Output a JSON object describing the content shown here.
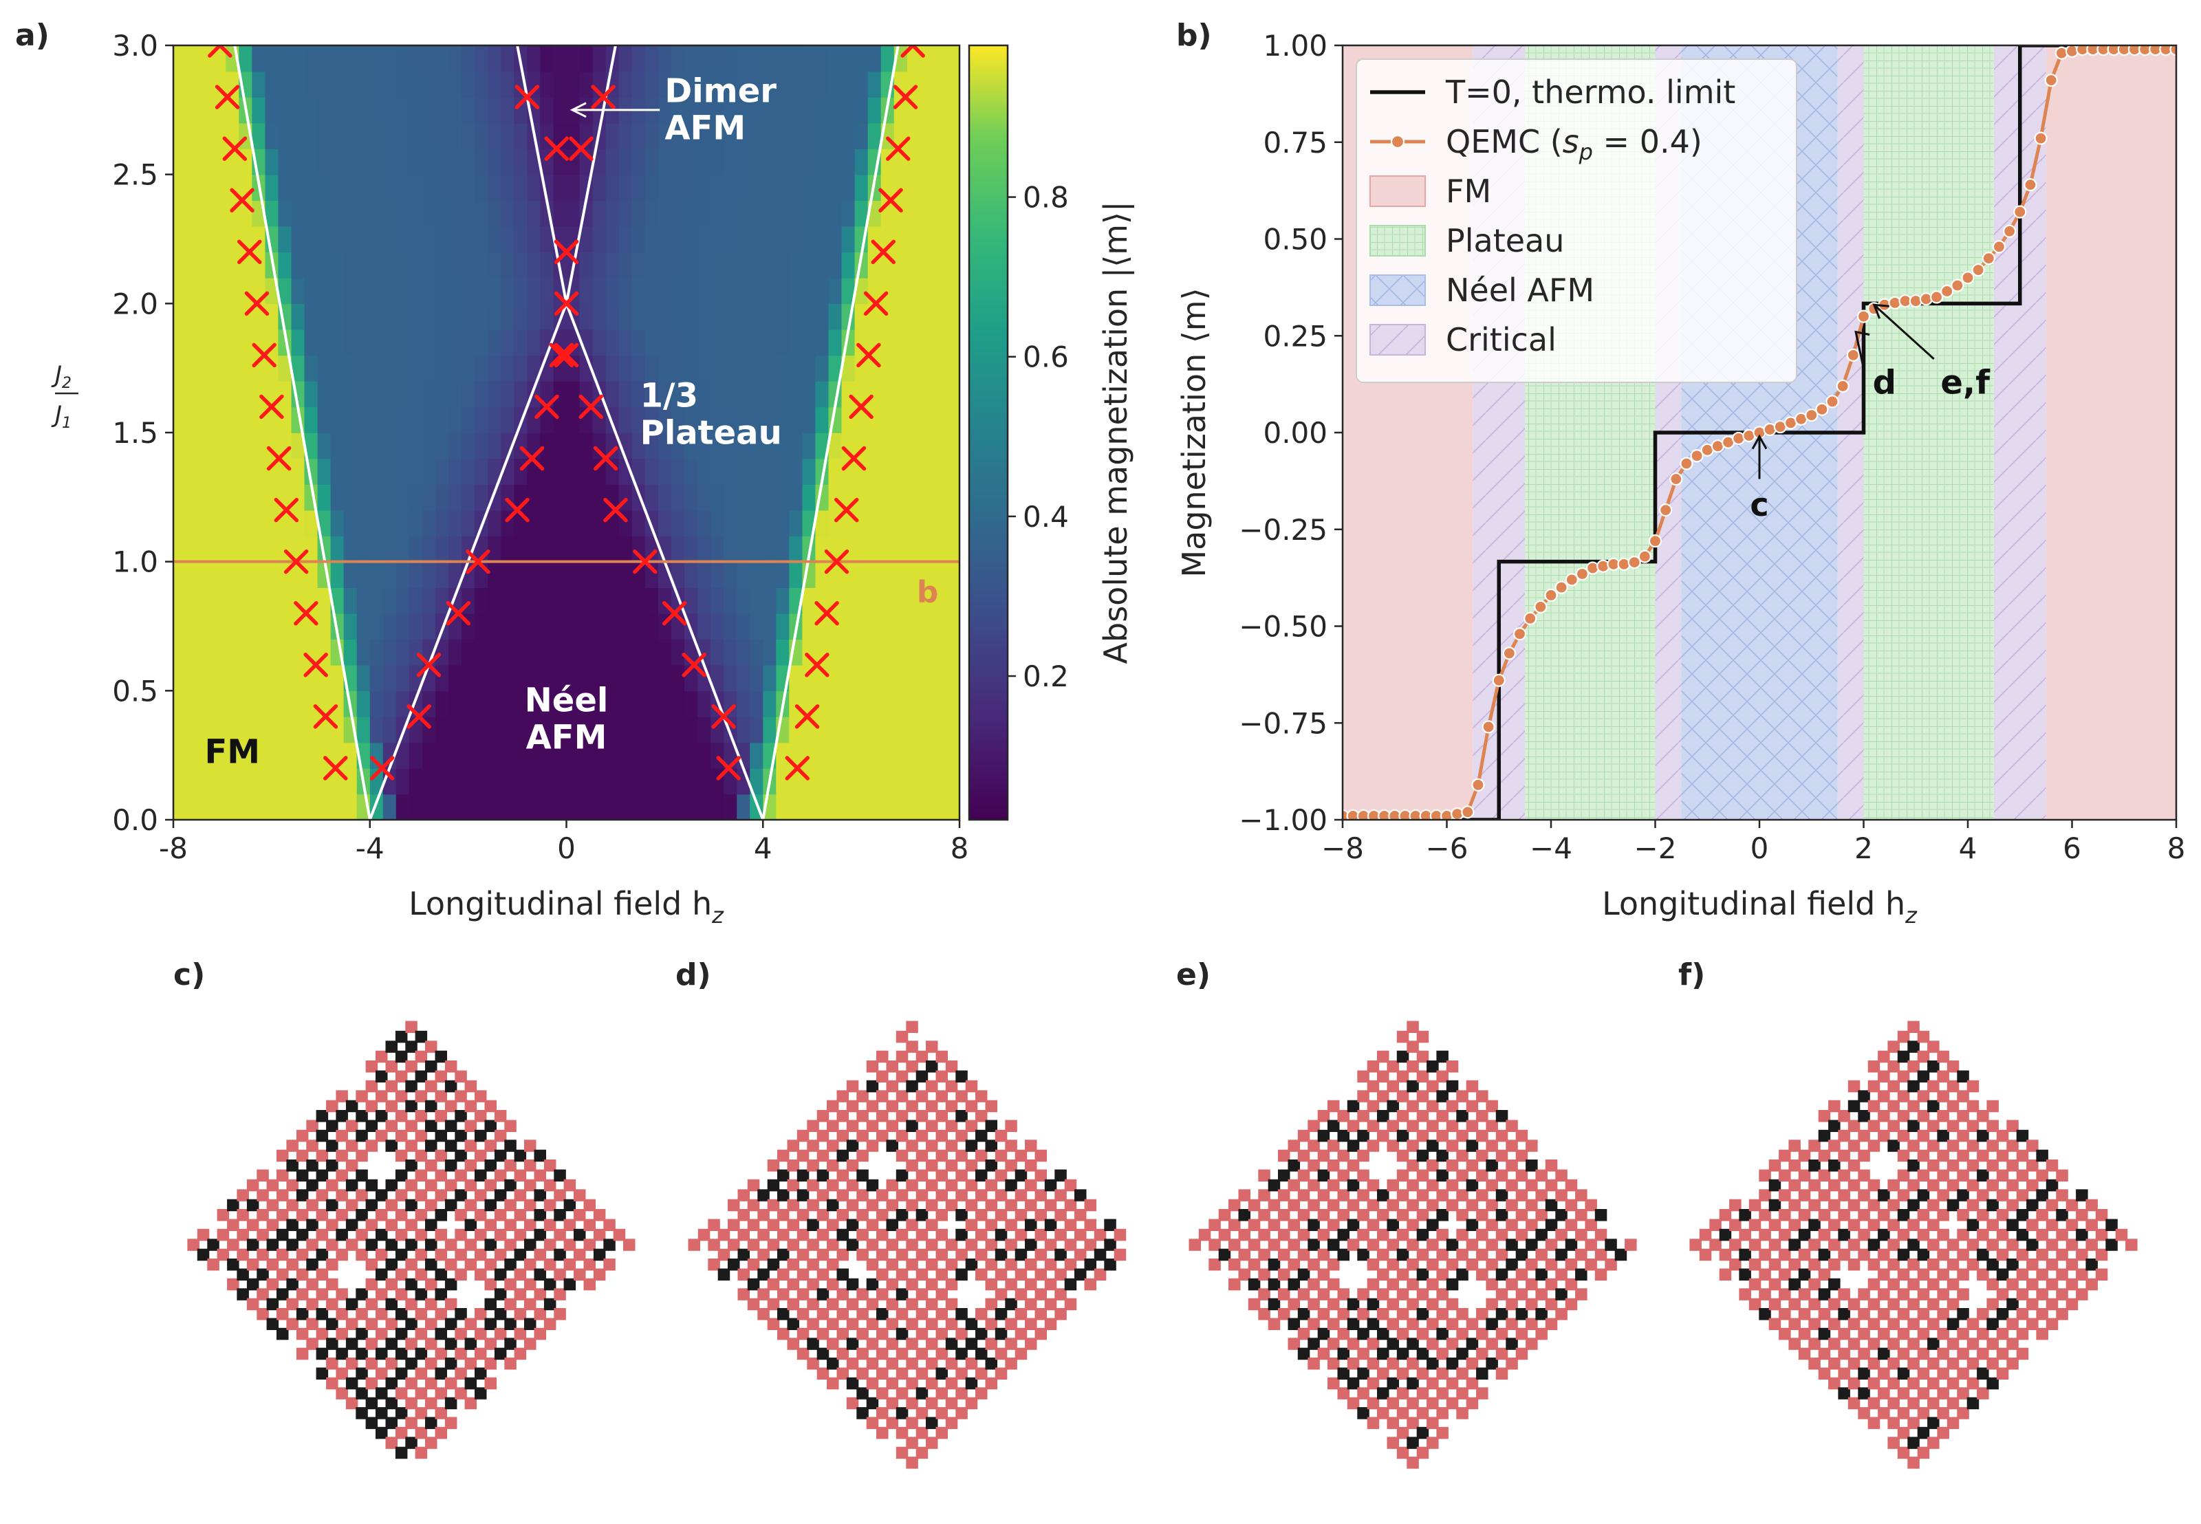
{
  "panel_labels": {
    "a": "a)",
    "b": "b)",
    "c": "c)",
    "d": "d)",
    "e": "e)",
    "f": "f)"
  },
  "chart_data": [
    {
      "type": "heatmap",
      "panel": "a",
      "xlabel": "Longitudinal field h",
      "xlabel_sub": "z",
      "ylabel_num": "J",
      "ylabel_num_sub": "2",
      "ylabel_den": "J",
      "ylabel_den_sub": "1",
      "xlim": [
        -8,
        8
      ],
      "ylim": [
        0,
        3
      ],
      "xticks": [
        -8,
        -4,
        0,
        4,
        8
      ],
      "xtick_labels": [
        "-8",
        "-4",
        "0",
        "4",
        "8"
      ],
      "yticks": [
        0,
        0.5,
        1,
        1.5,
        2,
        2.5,
        3
      ],
      "ytick_labels": [
        "0.0",
        "0.5",
        "1.0",
        "1.5",
        "2.0",
        "2.5",
        "3.0"
      ],
      "colormap": "viridis",
      "colorbar_label": "Absolute magnetization |⟨m⟩|",
      "colorbar_ticks": [
        0.2,
        0.4,
        0.6,
        0.8
      ],
      "colorbar_tick_labels": [
        "0.2",
        "0.4",
        "0.6",
        "0.8"
      ],
      "colorbar_range": [
        0.02,
        0.99
      ],
      "region_values": {
        "fm": 0.97,
        "neel": 0.03,
        "plateau": 0.33,
        "dimer": 0.03
      },
      "phase_boundaries": [
        {
          "name": "outer-left",
          "points": [
            [
              -4,
              0
            ],
            [
              -6.75,
              3
            ]
          ]
        },
        {
          "name": "outer-right",
          "points": [
            [
              4,
              0
            ],
            [
              6.75,
              3
            ]
          ]
        },
        {
          "name": "inner-left",
          "points": [
            [
              -4,
              0
            ],
            [
              0,
              2
            ],
            [
              -1,
              3
            ]
          ]
        },
        {
          "name": "inner-right",
          "points": [
            [
              4,
              0
            ],
            [
              0,
              2
            ],
            [
              1,
              3
            ]
          ]
        }
      ],
      "cut_line": {
        "y": 1.0,
        "label": "b",
        "color": "#dd8452"
      },
      "qemc_markers_left": [
        [
          -4.7,
          0.2
        ],
        [
          -4.9,
          0.4
        ],
        [
          -5.1,
          0.6
        ],
        [
          -5.3,
          0.8
        ],
        [
          -5.5,
          1.0
        ],
        [
          -5.7,
          1.2
        ],
        [
          -5.85,
          1.4
        ],
        [
          -6.0,
          1.6
        ],
        [
          -6.15,
          1.8
        ],
        [
          -6.3,
          2.0
        ],
        [
          -6.45,
          2.2
        ],
        [
          -6.6,
          2.4
        ],
        [
          -6.75,
          2.6
        ],
        [
          -6.9,
          2.8
        ],
        [
          -7.05,
          3.0
        ]
      ],
      "qemc_markers_right": [
        [
          4.7,
          0.2
        ],
        [
          4.9,
          0.4
        ],
        [
          5.1,
          0.6
        ],
        [
          5.3,
          0.8
        ],
        [
          5.5,
          1.0
        ],
        [
          5.7,
          1.2
        ],
        [
          5.85,
          1.4
        ],
        [
          6.0,
          1.6
        ],
        [
          6.15,
          1.8
        ],
        [
          6.3,
          2.0
        ],
        [
          6.45,
          2.2
        ],
        [
          6.6,
          2.4
        ],
        [
          6.75,
          2.6
        ],
        [
          6.9,
          2.8
        ],
        [
          7.05,
          3.0
        ]
      ],
      "qemc_markers_inner": [
        [
          -3.75,
          0.2
        ],
        [
          -3.0,
          0.4
        ],
        [
          -2.8,
          0.6
        ],
        [
          -2.2,
          0.8
        ],
        [
          -1.8,
          1.0
        ],
        [
          -1.0,
          1.2
        ],
        [
          -0.7,
          1.4
        ],
        [
          -0.4,
          1.6
        ],
        [
          -0.1,
          1.8
        ],
        [
          0.0,
          2.0
        ],
        [
          0.0,
          2.2
        ],
        [
          -0.2,
          2.6
        ],
        [
          -0.8,
          2.8
        ],
        [
          3.3,
          0.2
        ],
        [
          3.2,
          0.4
        ],
        [
          2.6,
          0.6
        ],
        [
          2.2,
          0.8
        ],
        [
          1.6,
          1.0
        ],
        [
          1.0,
          1.2
        ],
        [
          0.8,
          1.4
        ],
        [
          0.5,
          1.6
        ],
        [
          0.0,
          1.8
        ],
        [
          0.3,
          2.6
        ],
        [
          0.75,
          2.8
        ]
      ],
      "annotations": [
        {
          "name": "dimer",
          "lines": [
            "Dimer",
            "AFM"
          ],
          "color": "#ffffff"
        },
        {
          "name": "plateau",
          "lines": [
            "1/3",
            "Plateau"
          ],
          "color": "#ffffff"
        },
        {
          "name": "neel",
          "lines": [
            "Néel",
            "AFM"
          ],
          "color": "#ffffff"
        },
        {
          "name": "fm",
          "lines": [
            "FM"
          ],
          "color": "#111111"
        }
      ]
    },
    {
      "type": "line",
      "panel": "b",
      "xlabel": "Longitudinal field h",
      "xlabel_sub": "z",
      "ylabel": "Magnetization ⟨m⟩",
      "xlim": [
        -8,
        8
      ],
      "ylim": [
        -1,
        1
      ],
      "xticks": [
        -8,
        -6,
        -4,
        -2,
        0,
        2,
        4,
        6,
        8
      ],
      "xtick_labels": [
        "−8",
        "−6",
        "−4",
        "−2",
        "0",
        "2",
        "4",
        "6",
        "8"
      ],
      "yticks": [
        -1,
        -0.75,
        -0.5,
        -0.25,
        0,
        0.25,
        0.5,
        0.75,
        1
      ],
      "ytick_labels": [
        "−1.00",
        "−0.75",
        "−0.50",
        "−0.25",
        "0.00",
        "0.25",
        "0.50",
        "0.75",
        "1.00"
      ],
      "bands": [
        {
          "type": "FM",
          "x0": -8,
          "x1": -5.5
        },
        {
          "type": "Critical",
          "x0": -5.5,
          "x1": -4.5
        },
        {
          "type": "Plateau",
          "x0": -4.5,
          "x1": -2
        },
        {
          "type": "Critical",
          "x0": -2,
          "x1": -1.5
        },
        {
          "type": "Neel",
          "x0": -1.5,
          "x1": 1.5
        },
        {
          "type": "Critical",
          "x0": 1.5,
          "x1": 2
        },
        {
          "type": "Plateau",
          "x0": 2,
          "x1": 4.5
        },
        {
          "type": "Critical",
          "x0": 4.5,
          "x1": 5.5
        },
        {
          "type": "FM",
          "x0": 5.5,
          "x1": 8
        }
      ],
      "series": [
        {
          "name": "T=0, thermo. limit",
          "color": "#111111",
          "x": [
            -8,
            -5,
            -5,
            -2,
            -2,
            2,
            2,
            5,
            5,
            8
          ],
          "y": [
            -1,
            -1,
            -0.3333,
            -0.3333,
            0,
            0,
            0.3333,
            0.3333,
            1,
            1
          ]
        },
        {
          "name": "QEMC (s_p = 0.4)",
          "color": "#dd8452",
          "x": [
            -8.0,
            -7.8,
            -7.6,
            -7.4,
            -7.2,
            -7.0,
            -6.8,
            -6.6,
            -6.4,
            -6.2,
            -6.0,
            -5.8,
            -5.6,
            -5.4,
            -5.2,
            -5.0,
            -4.8,
            -4.6,
            -4.4,
            -4.2,
            -4.0,
            -3.8,
            -3.6,
            -3.4,
            -3.2,
            -3.0,
            -2.8,
            -2.6,
            -2.4,
            -2.2,
            -2.0,
            -1.8,
            -1.6,
            -1.4,
            -1.2,
            -1.0,
            -0.8,
            -0.6,
            -0.4,
            -0.2,
            0.0,
            0.2,
            0.4,
            0.6,
            0.8,
            1.0,
            1.2,
            1.4,
            1.6,
            1.8,
            2.0,
            2.2,
            2.4,
            2.6,
            2.8,
            3.0,
            3.2,
            3.4,
            3.6,
            3.8,
            4.0,
            4.2,
            4.4,
            4.6,
            4.8,
            5.0,
            5.2,
            5.4,
            5.6,
            5.8,
            6.0,
            6.2,
            6.4,
            6.6,
            6.8,
            7.0,
            7.2,
            7.4,
            7.6,
            7.8,
            8.0
          ],
          "y": [
            -0.99,
            -0.99,
            -0.99,
            -0.99,
            -0.99,
            -0.99,
            -0.99,
            -0.99,
            -0.99,
            -0.99,
            -0.99,
            -0.985,
            -0.98,
            -0.91,
            -0.76,
            -0.64,
            -0.57,
            -0.52,
            -0.48,
            -0.45,
            -0.42,
            -0.4,
            -0.38,
            -0.365,
            -0.35,
            -0.345,
            -0.34,
            -0.34,
            -0.335,
            -0.32,
            -0.28,
            -0.2,
            -0.12,
            -0.08,
            -0.06,
            -0.045,
            -0.035,
            -0.025,
            -0.015,
            -0.008,
            0.0,
            0.008,
            0.015,
            0.025,
            0.035,
            0.045,
            0.06,
            0.08,
            0.12,
            0.2,
            0.3,
            0.32,
            0.33,
            0.335,
            0.34,
            0.34,
            0.345,
            0.35,
            0.365,
            0.38,
            0.4,
            0.42,
            0.45,
            0.48,
            0.52,
            0.57,
            0.64,
            0.76,
            0.91,
            0.98,
            0.985,
            0.99,
            0.99,
            0.99,
            0.99,
            0.99,
            0.99,
            0.99,
            0.99,
            0.99,
            0.99
          ]
        }
      ],
      "legend": {
        "placement": "top-left",
        "entries": [
          {
            "label": "T=0, thermo. limit",
            "kind": "line",
            "color": "#111111"
          },
          {
            "label": "QEMC (",
            "label_math": "s",
            "label_sub": "p",
            "label_tail": " = 0.4)",
            "kind": "line-marker",
            "color": "#dd8452"
          },
          {
            "label": "FM",
            "kind": "patch",
            "color": "#e8a6a6"
          },
          {
            "label": "Plateau",
            "kind": "patch-grid",
            "color": "#a8dca8"
          },
          {
            "label": "Néel AFM",
            "kind": "patch-cross",
            "color": "#a9bfe8"
          },
          {
            "label": "Critical",
            "kind": "patch-diag",
            "color": "#c7b3dc"
          }
        ]
      },
      "annotations": [
        {
          "label": "c",
          "target_x": 0,
          "target_y": -0.01
        },
        {
          "label": "d",
          "target_x": 1.85,
          "target_y": 0.26
        },
        {
          "label": "e,f",
          "target_x": 2.2,
          "target_y": 0.33
        }
      ]
    }
  ],
  "lattice_panels": [
    {
      "label": "c)",
      "seed": 11,
      "red_bias": 0.22
    },
    {
      "label": "d)",
      "seed": 23,
      "red_bias": 0.45
    },
    {
      "label": "e)",
      "seed": 37,
      "red_bias": 0.45
    },
    {
      "label": "f)",
      "seed": 53,
      "red_bias": 0.48
    }
  ],
  "lattice_colors": {
    "up": "#d9696b",
    "down": "#1b1b1b"
  }
}
